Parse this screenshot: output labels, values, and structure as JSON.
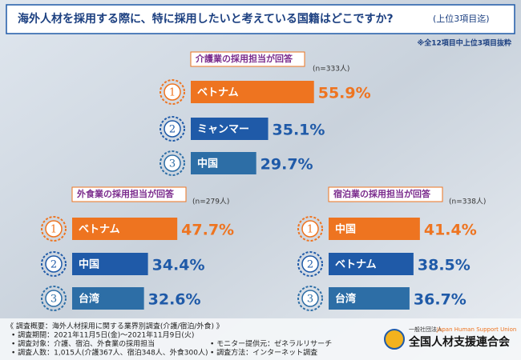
{
  "header": {
    "title": "海外人材を採用する際に、特に採用したいと考えている国籍はどこですか?",
    "title_note": "(上位3項目迄)",
    "note": "※全12項目中上位3項目抜粋"
  },
  "rank_labels": [
    "1",
    "2",
    "3"
  ],
  "chart_data": [
    {
      "type": "bar",
      "title": "介護業の採用担当が回答",
      "subtitle": "(n=333人)",
      "categories": [
        "ベトナム",
        "ミャンマー",
        "中国"
      ],
      "values": [
        55.9,
        35.1,
        29.7
      ],
      "value_labels": [
        "55.9%",
        "35.1%",
        "29.7%"
      ],
      "colors": [
        "#ee7420",
        "#1f5aa8",
        "#2d6ea6"
      ]
    },
    {
      "type": "bar",
      "title": "外食業の採用担当が回答",
      "subtitle": "(n=279人)",
      "categories": [
        "ベトナム",
        "中国",
        "台湾"
      ],
      "values": [
        47.7,
        34.4,
        32.6
      ],
      "value_labels": [
        "47.7%",
        "34.4%",
        "32.6%"
      ],
      "colors": [
        "#ee7420",
        "#1f5aa8",
        "#2d6ea6"
      ]
    },
    {
      "type": "bar",
      "title": "宿泊業の採用担当が回答",
      "subtitle": "(n=338人)",
      "categories": [
        "中国",
        "ベトナム",
        "台湾"
      ],
      "values": [
        41.4,
        38.5,
        36.7
      ],
      "value_labels": [
        "41.4%",
        "38.5%",
        "36.7%"
      ],
      "colors": [
        "#ee7420",
        "#1f5aa8",
        "#2d6ea6"
      ]
    }
  ],
  "footer": {
    "lines": [
      "《 調査概要：海外人材採用に関する業界別調査(介護/宿泊/外食) 》",
      "• 調査期間：2021年11月5日(金)～2021年11月9日(火)",
      "• 調査対象：介護、宿泊、外食業の採用担当",
      "• 調査人数：1,015人(介護367人、宿泊348人、外食300人)"
    ],
    "right_lines": [
      "• モニター提供元：ゼネラルリサーチ",
      "• 調査方法：インターネット調査"
    ],
    "logo": {
      "org_type": "一般社団法人",
      "english": "Japan Human Support Union",
      "name": "全国人材支援連合会"
    }
  }
}
